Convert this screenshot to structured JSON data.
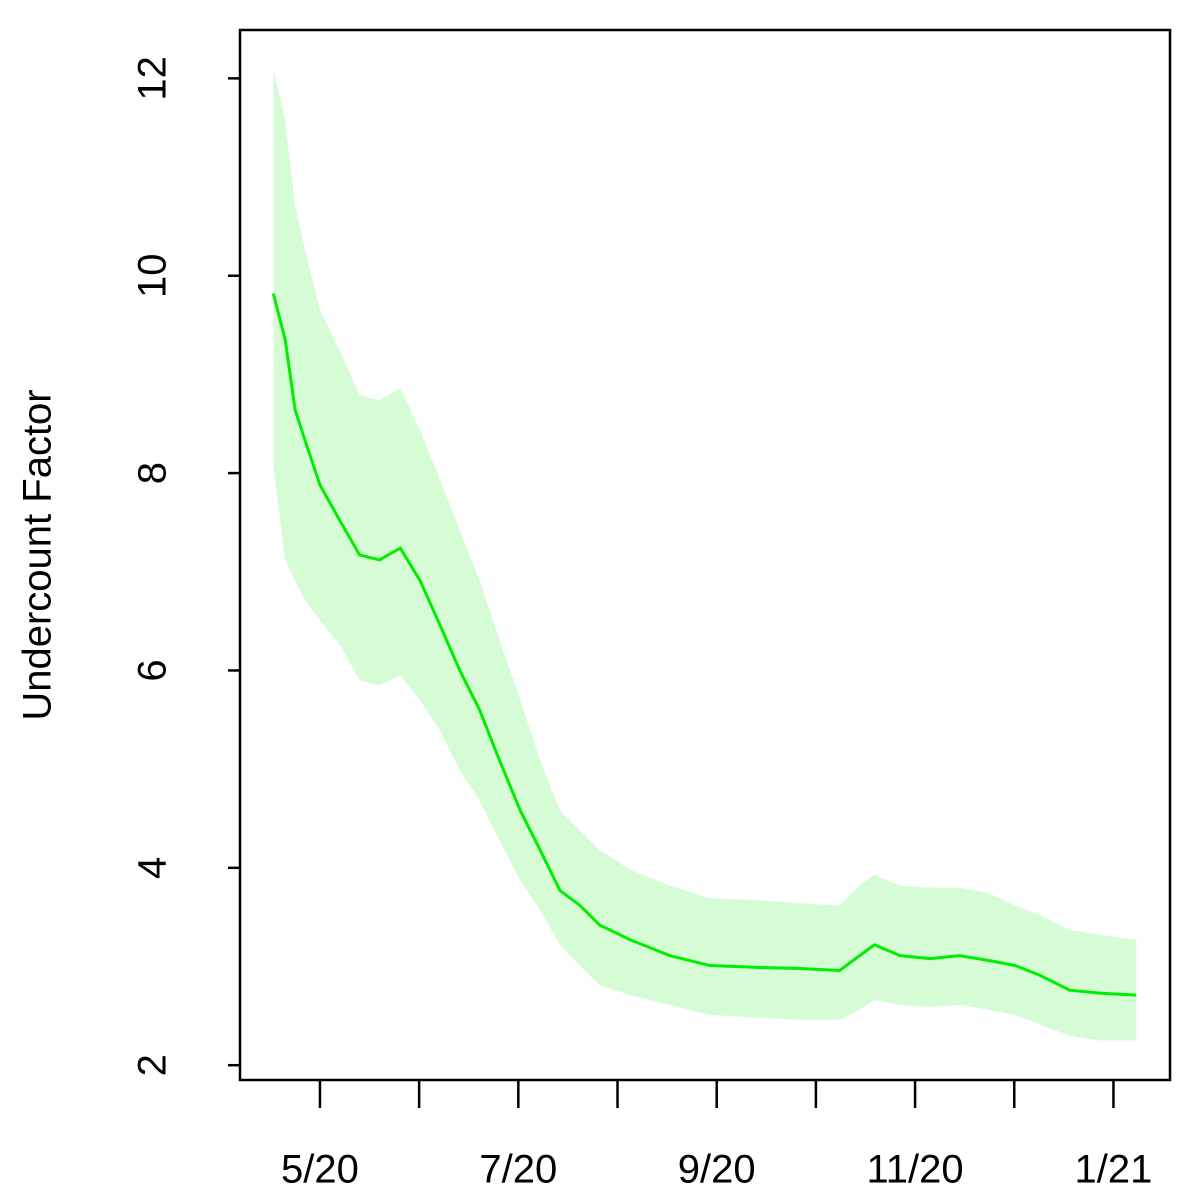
{
  "chart_data": {
    "type": "line",
    "y_label": "Undercount Factor",
    "x": [
      4.53,
      4.65,
      4.75,
      4.85,
      5.0,
      5.2,
      5.4,
      5.6,
      5.81,
      6.01,
      6.21,
      6.41,
      6.61,
      6.81,
      7.02,
      7.22,
      7.42,
      7.62,
      7.82,
      8.13,
      8.53,
      8.93,
      9.44,
      9.84,
      10.24,
      10.44,
      10.59,
      10.85,
      11.15,
      11.45,
      11.75,
      12.01,
      12.26,
      12.56,
      12.86,
      13.23
    ],
    "values": [
      9.82,
      9.35,
      8.64,
      8.33,
      7.88,
      7.52,
      7.17,
      7.12,
      7.24,
      6.91,
      6.46,
      6.0,
      5.6,
      5.09,
      4.58,
      4.18,
      3.77,
      3.62,
      3.42,
      3.27,
      3.11,
      3.01,
      2.99,
      2.98,
      2.96,
      3.11,
      3.22,
      3.11,
      3.08,
      3.11,
      3.06,
      3.01,
      2.91,
      2.76,
      2.73,
      2.71
    ],
    "upper": [
      12.1,
      11.57,
      10.71,
      10.26,
      9.65,
      9.24,
      8.79,
      8.74,
      8.86,
      8.43,
      7.93,
      7.42,
      6.91,
      6.31,
      5.7,
      5.09,
      4.58,
      4.38,
      4.18,
      3.98,
      3.82,
      3.69,
      3.67,
      3.64,
      3.62,
      3.82,
      3.93,
      3.82,
      3.8,
      3.8,
      3.74,
      3.62,
      3.52,
      3.37,
      3.32,
      3.27
    ],
    "lower": [
      8.08,
      7.12,
      6.91,
      6.71,
      6.51,
      6.26,
      5.9,
      5.85,
      5.95,
      5.7,
      5.39,
      4.99,
      4.68,
      4.28,
      3.87,
      3.57,
      3.22,
      3.01,
      2.81,
      2.71,
      2.61,
      2.51,
      2.48,
      2.46,
      2.46,
      2.56,
      2.66,
      2.61,
      2.59,
      2.61,
      2.56,
      2.51,
      2.41,
      2.3,
      2.25,
      2.25
    ],
    "color": "#00ee00",
    "band_color": "#d6fcd6",
    "xlim": [
      4.194,
      13.57
    ],
    "xticks": [
      {
        "value": 5,
        "label": "5/20"
      },
      {
        "value": 6,
        "label": null
      },
      {
        "value": 7,
        "label": "7/20"
      },
      {
        "value": 8,
        "label": null
      },
      {
        "value": 9,
        "label": "9/20"
      },
      {
        "value": 10,
        "label": null
      },
      {
        "value": 11,
        "label": "11/20"
      },
      {
        "value": 12,
        "label": null
      },
      {
        "value": 13,
        "label": "1/21"
      }
    ],
    "ylim": [
      1.85,
      12.49
    ],
    "yticks": [
      2,
      4,
      6,
      8,
      10,
      12
    ]
  }
}
